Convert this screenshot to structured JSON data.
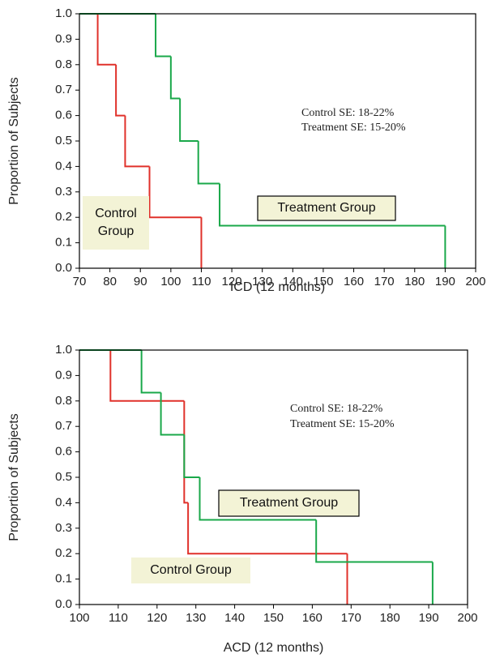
{
  "chart_data": [
    {
      "type": "step",
      "x_label": "ICD  (12 months)",
      "y_label": "Proportion of Subjects",
      "annotations": [
        "Control SE: 18-22%",
        "Treatment SE: 15-20%"
      ],
      "xlim": [
        70,
        200
      ],
      "xticks": [
        70,
        80,
        90,
        100,
        110,
        120,
        130,
        140,
        150,
        160,
        170,
        180,
        190,
        200
      ],
      "ylim": [
        0,
        1
      ],
      "yticks": [
        {
          "value": 0,
          "label": "0.0"
        },
        0.1,
        0.2,
        0.3,
        0.4,
        0.5,
        0.6,
        0.7,
        0.8,
        0.9,
        {
          "value": 1,
          "label": "1.0"
        }
      ],
      "series": [
        {
          "name": "Control Group",
          "color": "#e0312a",
          "x": [
            70,
            76,
            82,
            85,
            93,
            110
          ],
          "values": [
            1,
            0.8,
            0.6,
            0.4,
            0.2,
            0
          ]
        },
        {
          "name": "Treatment Group",
          "color": "#1aa84a",
          "x": [
            70,
            95,
            100,
            103,
            109,
            116,
            190
          ],
          "values": [
            1,
            0.833,
            0.667,
            0.5,
            0.333,
            0.167,
            0
          ]
        }
      ]
    },
    {
      "type": "step",
      "x_label": "ACD (12 months)",
      "y_label": "Proportion of Subjects",
      "annotations": [
        "Control SE: 18-22%",
        "Treatment SE: 15-20%"
      ],
      "xlim": [
        100,
        200
      ],
      "xticks": [
        100,
        110,
        120,
        130,
        140,
        150,
        160,
        170,
        180,
        190,
        200
      ],
      "ylim": [
        0,
        1
      ],
      "yticks": [
        {
          "value": 0,
          "label": "0.0"
        },
        0.1,
        0.2,
        0.3,
        0.4,
        0.5,
        0.6,
        0.7,
        0.8,
        0.9,
        {
          "value": 1,
          "label": "1.0"
        }
      ],
      "series": [
        {
          "name": "Control Group",
          "color": "#e0312a",
          "x": [
            100,
            108,
            127,
            128,
            169
          ],
          "values": [
            1,
            0.8,
            0.4,
            0.2,
            0
          ]
        },
        {
          "name": "Treatment Group",
          "color": "#1aa84a",
          "x": [
            100,
            116,
            121,
            127,
            131,
            161,
            191
          ],
          "values": [
            1,
            0.833,
            0.667,
            0.5,
            0.333,
            0.167,
            0
          ]
        }
      ]
    }
  ]
}
